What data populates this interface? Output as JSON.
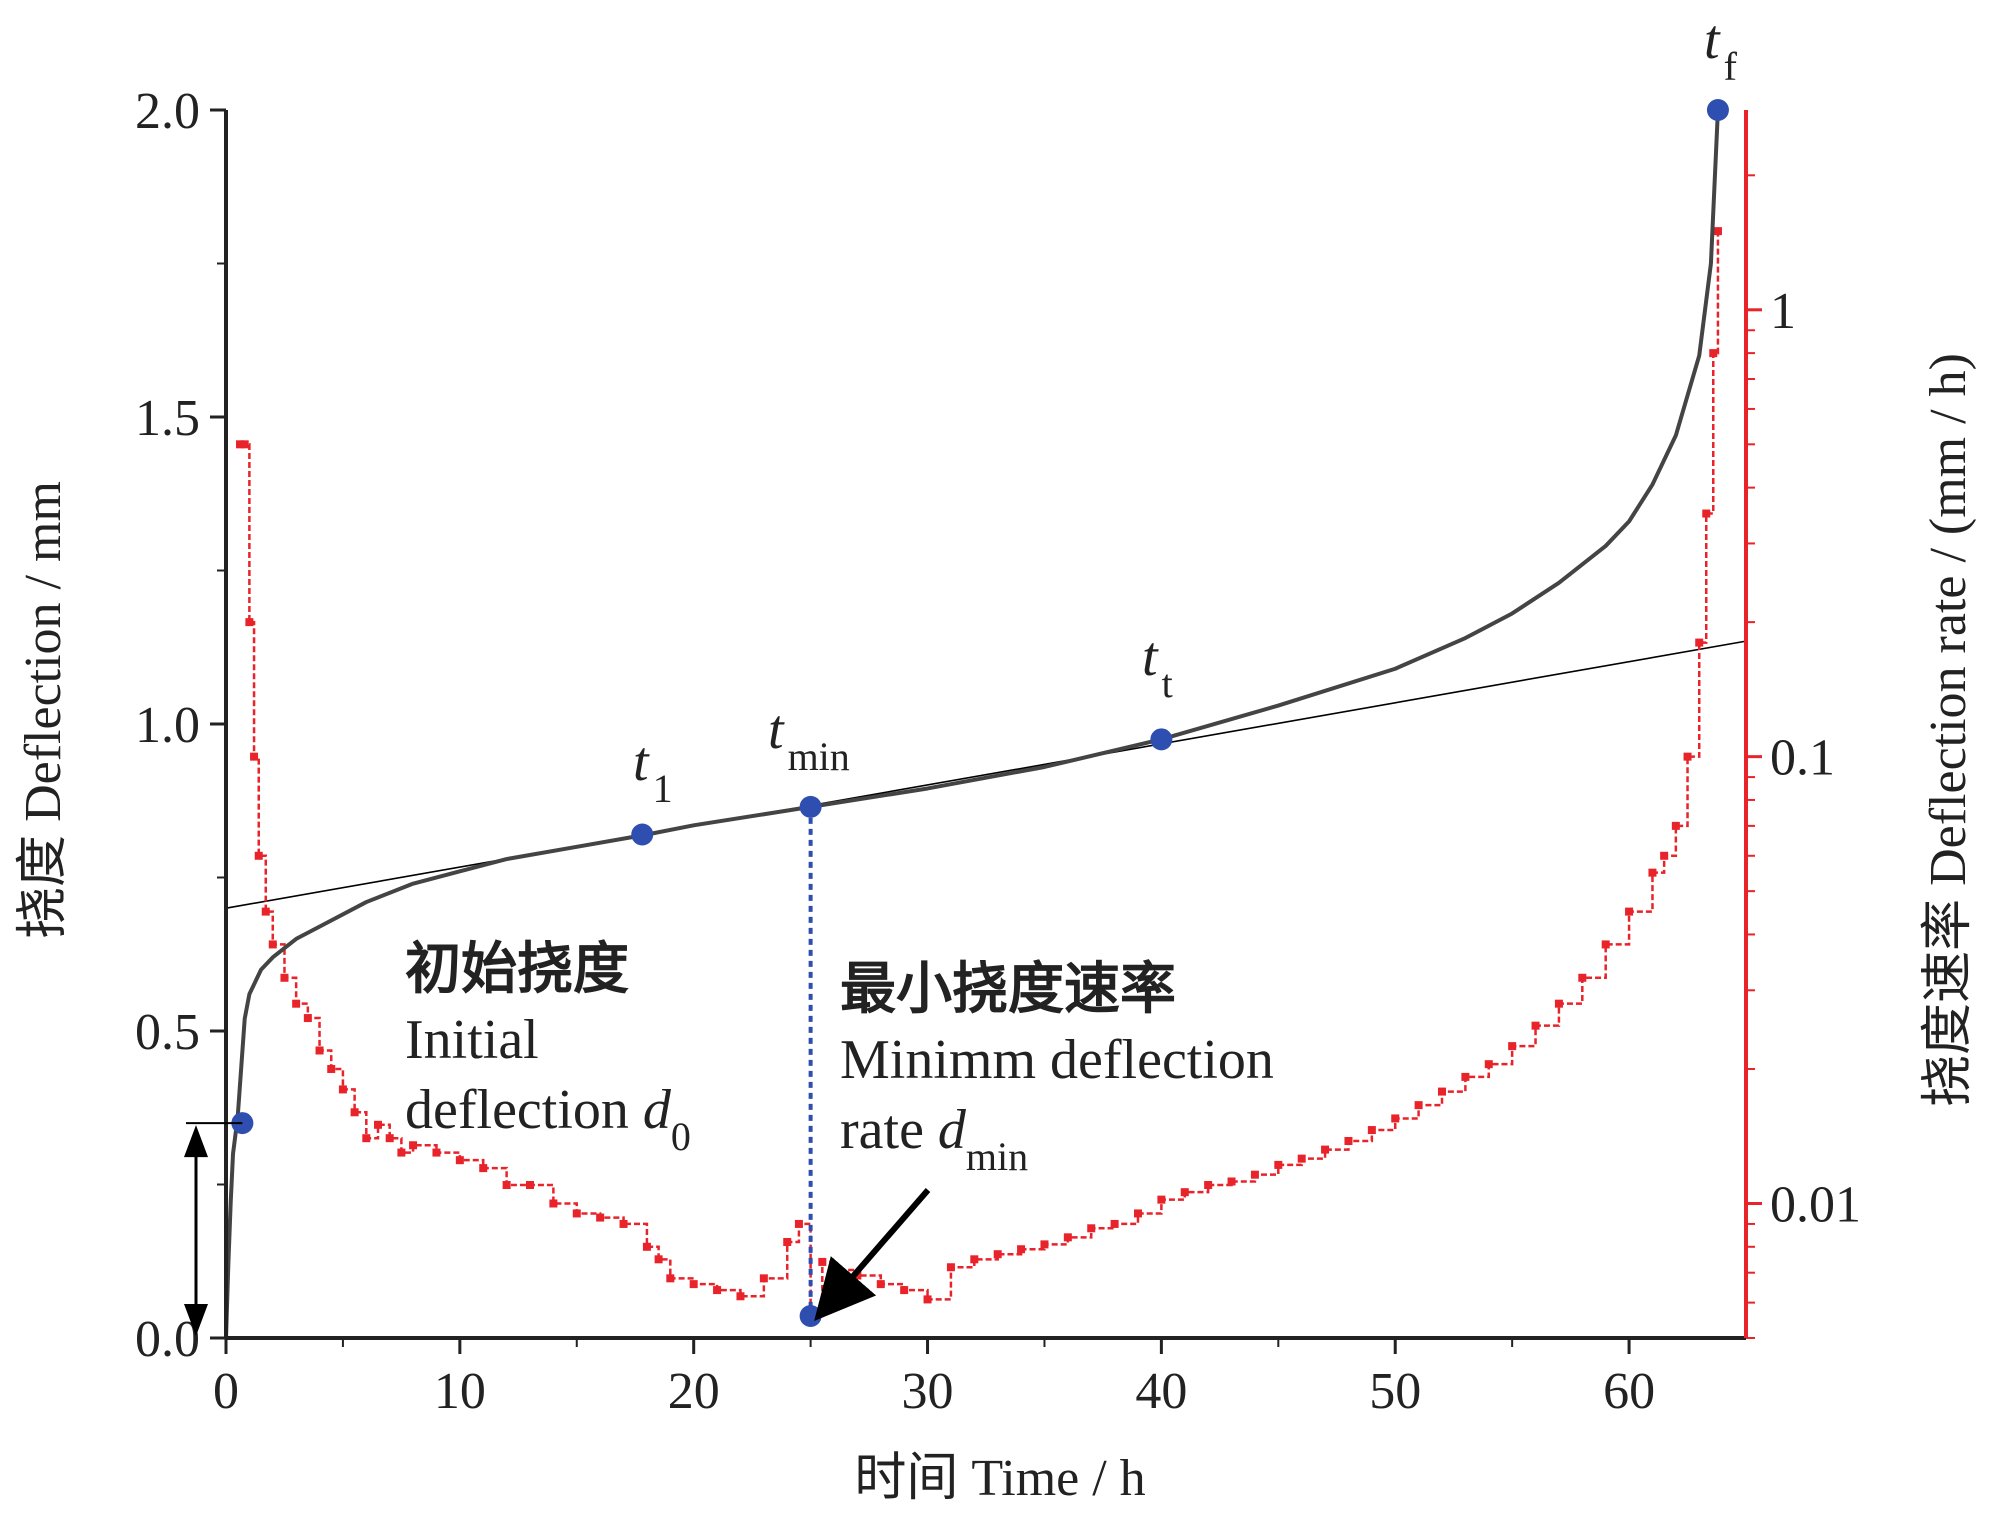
{
  "colors": {
    "deflection": "#444444",
    "rate": "#e8232a",
    "marker": "#2f4fb0",
    "tangent": "#000000",
    "axis_left": "#222222",
    "axis_right": "#e8232a"
  },
  "chart_data": {
    "type": "line",
    "title": "",
    "xlabel": "时间 Time / h",
    "ylabel": "挠度 Deflection / mm",
    "ylabel_right": "挠度速率 Deflection rate / (mm / h)",
    "xlim": [
      0,
      65
    ],
    "ylim": [
      0,
      2.0
    ],
    "ylim_right": [
      0.005,
      2.8
    ],
    "yscale_right": "log",
    "x_ticks": [
      0,
      10,
      20,
      30,
      40,
      50,
      60
    ],
    "x_tick_labels": [
      "0",
      "10",
      "20",
      "30",
      "40",
      "50",
      "60"
    ],
    "y_ticks": [
      0,
      0.5,
      1.0,
      1.5,
      2.0
    ],
    "y_tick_labels": [
      "0.0",
      "0.5",
      "1.0",
      "1.5",
      "2.0"
    ],
    "y_right_ticks": [
      0.01,
      0.1,
      1
    ],
    "y_right_tick_labels": [
      "0.01",
      "0.1",
      "1"
    ],
    "series": [
      {
        "name": "Deflection",
        "axis": "left",
        "x": [
          0,
          0.1,
          0.2,
          0.3,
          0.5,
          0.8,
          1.0,
          1.5,
          2,
          3,
          4,
          6,
          8,
          10,
          12,
          15,
          18,
          20,
          25,
          30,
          35,
          40,
          45,
          50,
          53,
          55,
          57,
          59,
          60,
          61,
          62,
          63,
          63.5,
          63.8
        ],
        "values": [
          0.0,
          0.12,
          0.22,
          0.3,
          0.36,
          0.52,
          0.56,
          0.6,
          0.62,
          0.65,
          0.67,
          0.71,
          0.74,
          0.76,
          0.78,
          0.8,
          0.82,
          0.835,
          0.865,
          0.895,
          0.93,
          0.975,
          1.03,
          1.09,
          1.14,
          1.18,
          1.23,
          1.29,
          1.33,
          1.39,
          1.47,
          1.6,
          1.75,
          2.0
        ]
      },
      {
        "name": "Deflection rate",
        "axis": "right",
        "x": [
          0.6,
          0.8,
          1.0,
          1.2,
          1.4,
          1.7,
          2,
          2.5,
          3,
          3.5,
          4,
          4.5,
          5,
          5.5,
          6,
          6.5,
          7,
          7.5,
          8,
          9,
          10,
          11,
          12,
          13,
          14,
          15,
          16,
          17,
          18,
          18.5,
          19,
          20,
          21,
          22,
          23,
          24,
          24.5,
          25,
          25.5,
          26,
          27,
          28,
          29,
          30,
          31,
          32,
          33,
          34,
          35,
          36,
          37,
          38,
          39,
          40,
          41,
          42,
          43,
          44,
          45,
          46,
          47,
          48,
          49,
          50,
          51,
          52,
          53,
          54,
          55,
          56,
          57,
          58,
          59,
          60,
          61,
          61.5,
          62,
          62.5,
          63,
          63.3,
          63.6,
          63.8
        ],
        "values": [
          0.5,
          0.5,
          0.2,
          0.1,
          0.06,
          0.045,
          0.038,
          0.032,
          0.028,
          0.026,
          0.022,
          0.02,
          0.018,
          0.016,
          0.014,
          0.015,
          0.014,
          0.013,
          0.0135,
          0.013,
          0.0125,
          0.012,
          0.011,
          0.011,
          0.01,
          0.0095,
          0.0093,
          0.009,
          0.008,
          0.0075,
          0.0068,
          0.0066,
          0.0064,
          0.0062,
          0.0068,
          0.0082,
          0.009,
          0.0056,
          0.0074,
          0.0071,
          0.0069,
          0.0066,
          0.0064,
          0.0061,
          0.0072,
          0.0075,
          0.0077,
          0.0079,
          0.0081,
          0.0084,
          0.0088,
          0.009,
          0.0095,
          0.0102,
          0.0106,
          0.011,
          0.0112,
          0.0116,
          0.0122,
          0.0126,
          0.0132,
          0.0138,
          0.0146,
          0.0155,
          0.0166,
          0.0178,
          0.0192,
          0.0205,
          0.0225,
          0.025,
          0.028,
          0.032,
          0.038,
          0.045,
          0.055,
          0.06,
          0.07,
          0.1,
          0.18,
          0.35,
          0.8,
          1.5
        ]
      }
    ],
    "tangent_line": {
      "x": [
        0,
        65
      ],
      "values": [
        0.7,
        1.135
      ]
    },
    "marked_points": [
      {
        "label": "d0_marker",
        "x": 0.7,
        "value": 0.35
      },
      {
        "label": "t1",
        "x": 17.8,
        "value": 0.82
      },
      {
        "label": "tmin",
        "x": 25.0,
        "value": 0.865
      },
      {
        "label": "tt",
        "x": 40.0,
        "value": 0.975
      },
      {
        "label": "tf",
        "x": 63.8,
        "value": 2.0
      }
    ],
    "min_rate_marker": {
      "x": 25.0,
      "value": 0.0056
    },
    "annotations": {
      "t1": {
        "base": "t",
        "sub": "1"
      },
      "tmin": {
        "base": "t",
        "sub": "min"
      },
      "tt": {
        "base": "t",
        "sub": "t"
      },
      "tf": {
        "base": "t",
        "sub": "f"
      },
      "initial_cn": "初始挠度",
      "initial_en_1": "Initial",
      "initial_en_2": "deflection",
      "initial_var": "d",
      "initial_var_sub": "0",
      "min_cn": "最小挠度速率",
      "min_en_1": "Minimm deflection",
      "min_en_2": "rate",
      "min_var": "d",
      "min_var_sub": "min"
    }
  }
}
